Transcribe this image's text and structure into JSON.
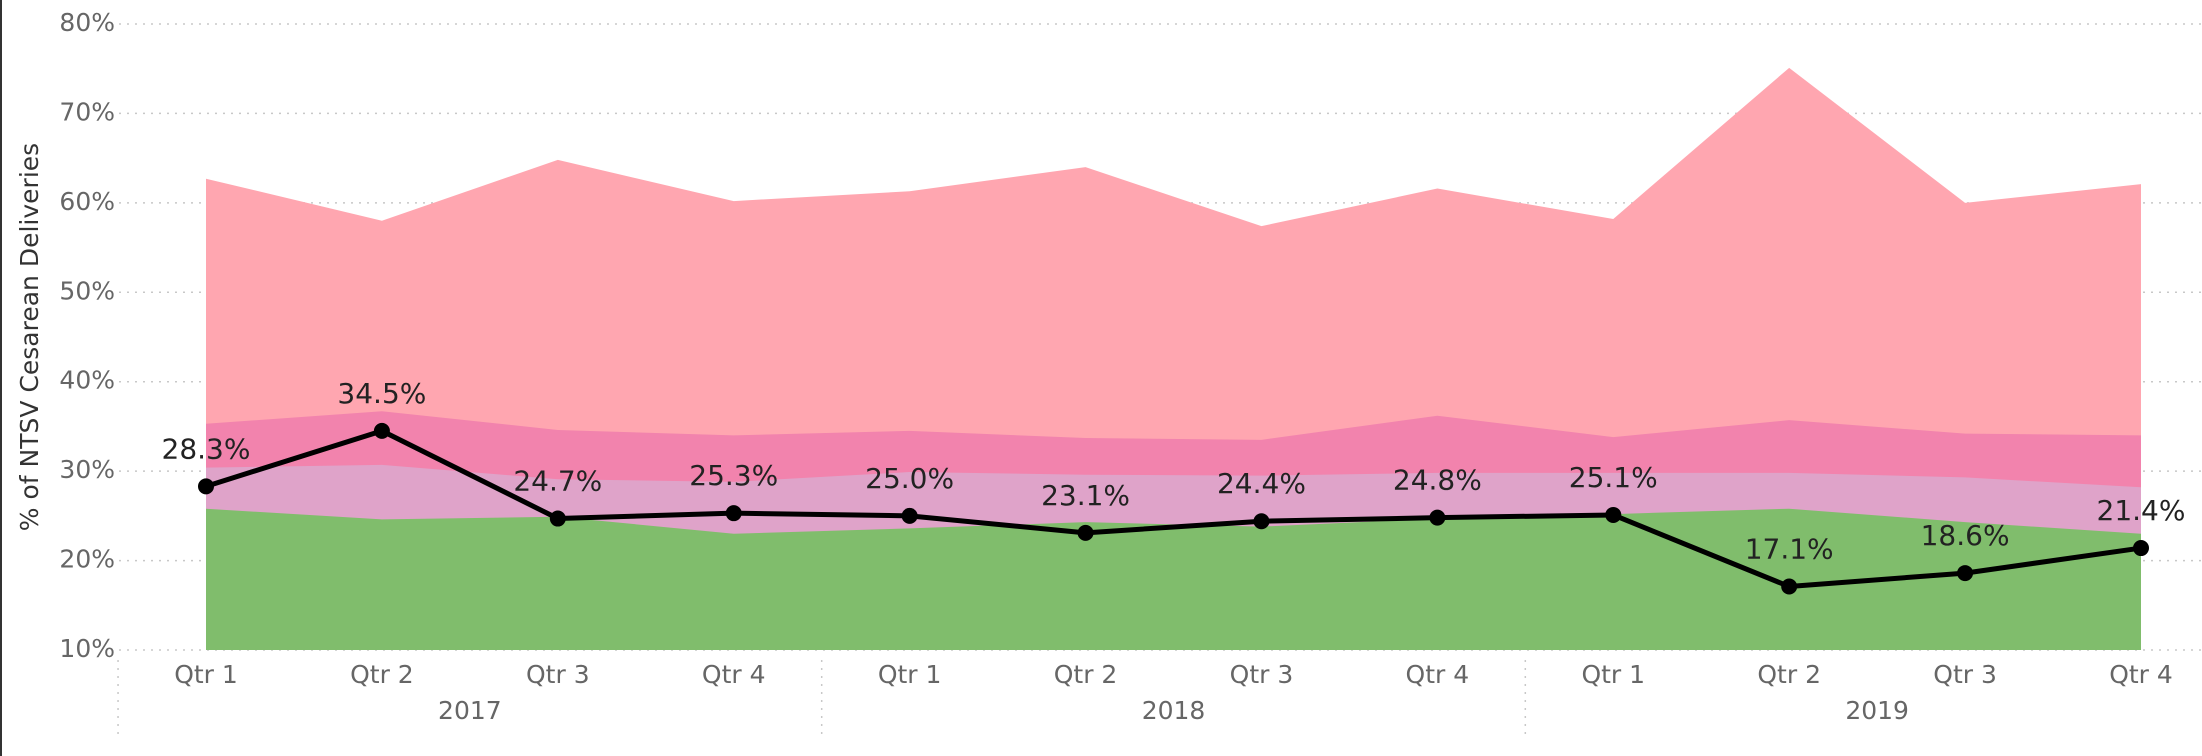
{
  "chart_data": {
    "type": "area",
    "y_label": "% of NTSV Cesarean Deliveries",
    "categories": [
      "Qtr 1",
      "Qtr 2",
      "Qtr 3",
      "Qtr 4",
      "Qtr 1",
      "Qtr 2",
      "Qtr 3",
      "Qtr 4",
      "Qtr 1",
      "Qtr 2",
      "Qtr 3",
      "Qtr 4"
    ],
    "years": [
      "2017",
      "2018",
      "2019"
    ],
    "ylim": [
      10,
      80
    ],
    "yticks": [
      {
        "value": 10,
        "label": "10%"
      },
      {
        "value": 20,
        "label": "20%"
      },
      {
        "value": 30,
        "label": "30%"
      },
      {
        "value": 40,
        "label": "40%"
      },
      {
        "value": 50,
        "label": "50%"
      },
      {
        "value": 60,
        "label": "60%"
      },
      {
        "value": 70,
        "label": "70%"
      },
      {
        "value": 80,
        "label": "80%"
      }
    ],
    "grid": true,
    "series": [
      {
        "type": "area",
        "color": "#ffa6b0",
        "values": [
          62.7,
          58.0,
          64.8,
          60.2,
          61.3,
          64.0,
          57.4,
          61.6,
          58.2,
          75.1,
          60.0,
          62.1
        ]
      },
      {
        "type": "area",
        "color": "#f283ad",
        "values": [
          35.3,
          36.7,
          34.6,
          34.0,
          34.5,
          33.7,
          33.5,
          36.2,
          33.8,
          35.7,
          34.2,
          34.0
        ]
      },
      {
        "type": "area",
        "color": "#dfa3c9",
        "values": [
          30.4,
          30.7,
          29.1,
          28.8,
          29.9,
          29.6,
          29.5,
          29.8,
          29.8,
          29.8,
          29.3,
          28.2
        ]
      },
      {
        "type": "area",
        "color": "#80bd6c",
        "values": [
          25.8,
          24.6,
          24.9,
          23.0,
          23.6,
          24.3,
          23.8,
          24.7,
          25.2,
          25.8,
          24.3,
          23.0
        ]
      },
      {
        "type": "line",
        "color": "#000000",
        "values": [
          28.3,
          34.5,
          24.7,
          25.3,
          25.0,
          23.1,
          24.4,
          24.8,
          25.1,
          17.1,
          18.6,
          21.4
        ],
        "value_labels": [
          "28.3%",
          "34.5%",
          "24.7%",
          "25.3%",
          "25.0%",
          "23.1%",
          "24.4%",
          "24.8%",
          "25.1%",
          "17.1%",
          "18.6%",
          "21.4%"
        ]
      }
    ]
  }
}
